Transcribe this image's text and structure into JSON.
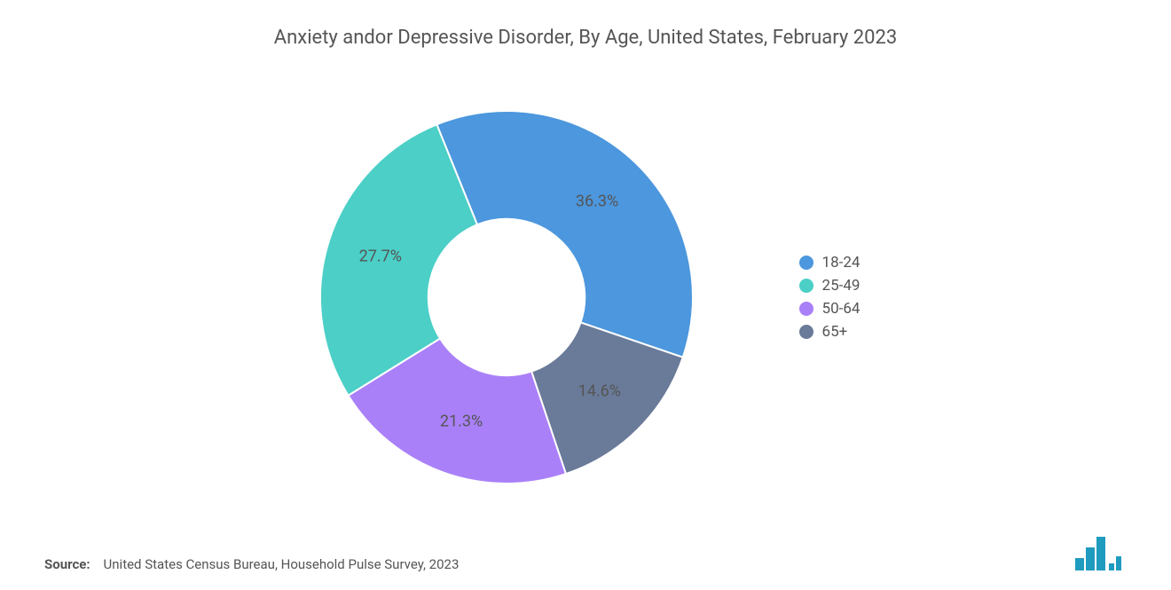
{
  "chart": {
    "type": "donut",
    "title": "Anxiety andor Depressive Disorder, By Age, United States, February 2023",
    "title_fontsize": 22,
    "title_color": "#555555",
    "background_color": "#ffffff",
    "inner_radius_ratio": 0.42,
    "outer_radius": 210,
    "start_angle_deg": -22,
    "label_fontsize": 18,
    "label_color": "#555555",
    "legend_fontsize": 17,
    "legend_position": "right",
    "slices": [
      {
        "label": "18-24",
        "value": 36.3,
        "color": "#4c97dd",
        "display": "36.3%"
      },
      {
        "label": "65+",
        "value": 14.6,
        "color": "#6a7a99",
        "display": "14.6%"
      },
      {
        "label": "50-64",
        "value": 21.3,
        "color": "#aa80f9",
        "display": "21.3%"
      },
      {
        "label": "25-49",
        "value": 27.7,
        "color": "#4bcfc7",
        "display": "27.7%"
      }
    ],
    "legend_order": [
      "18-24",
      "25-49",
      "50-64",
      "65+"
    ]
  },
  "source": {
    "prefix": "Source:",
    "text": "United States Census Bureau, Household Pulse Survey, 2023",
    "fontsize": 15,
    "color": "#555555"
  },
  "logo": {
    "name": "mordor-intelligence-logo",
    "bar_color": "#1f9bbf",
    "bg_color": "#ffffff"
  }
}
